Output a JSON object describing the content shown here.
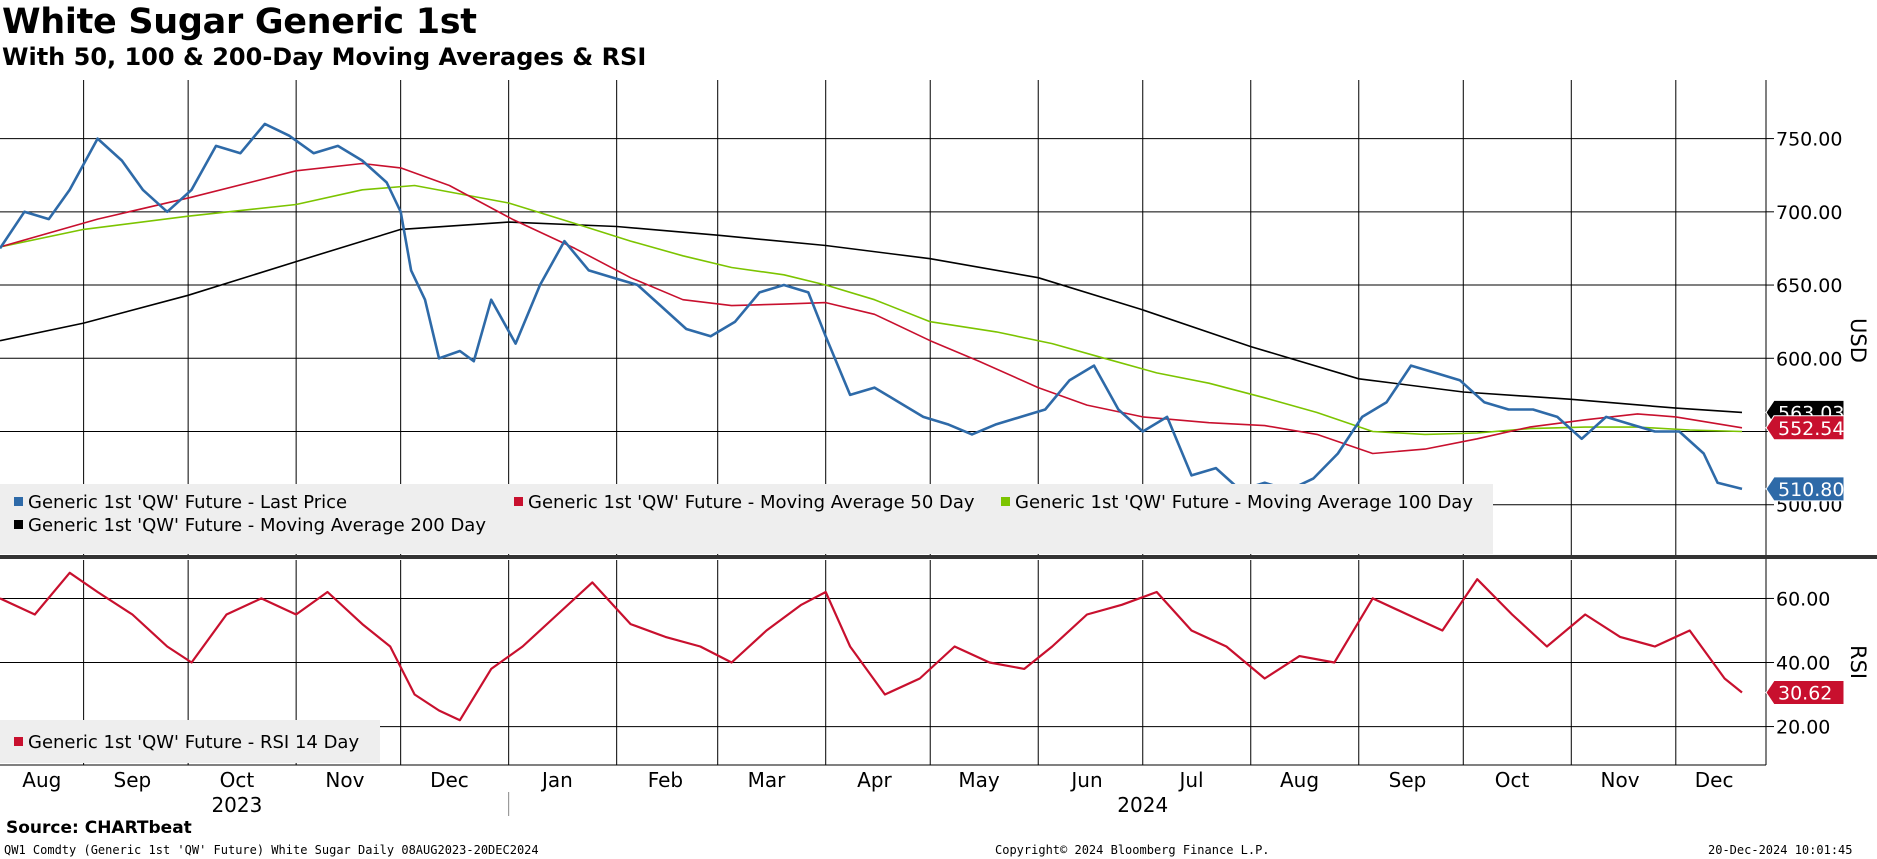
{
  "header": {
    "title": "White Sugar Generic 1st",
    "subtitle": "With 50, 100 & 200-Day Moving Averages & RSI"
  },
  "footer": {
    "source": "Source: CHARTbeat",
    "ticker": "QW1 Comdty (Generic 1st 'QW' Future) White Sugar  Daily 08AUG2023-20DEC2024",
    "copyright": "Copyright© 2024 Bloomberg Finance L.P.",
    "timestamp": "20-Dec-2024 10:01:45"
  },
  "colors": {
    "last_price": "#2e6aa8",
    "ma50": "#c8102e",
    "ma100": "#7cc400",
    "ma200": "#000000",
    "rsi": "#c8102e",
    "grid": "#000000",
    "legend_bg": "#eeeeee"
  },
  "chart_data": [
    {
      "type": "line",
      "title": "White Sugar Generic 1st",
      "ylabel": "USD",
      "ylim": [
        465,
        790
      ],
      "yticks": [
        "500.00",
        "550.00",
        "600.00",
        "650.00",
        "700.00",
        "750.00"
      ],
      "x_start": "2023-08-08",
      "x_end": "2024-12-20",
      "months": [
        "Aug",
        "Sep",
        "Oct",
        "Nov",
        "Dec",
        "Jan",
        "Feb",
        "Mar",
        "Apr",
        "May",
        "Jun",
        "Jul",
        "Aug",
        "Sep",
        "Oct",
        "Nov",
        "Dec"
      ],
      "years": [
        "2023",
        "2024"
      ],
      "last_values": {
        "last_price": "510.80",
        "ma50": "552.54",
        "ma200": "563.03"
      },
      "series": [
        {
          "key": "last_price",
          "name": "Generic 1st 'QW' Future - Last Price",
          "x": [
            "2023-08-08",
            "2023-08-15",
            "2023-08-22",
            "2023-08-28",
            "2023-09-05",
            "2023-09-12",
            "2023-09-18",
            "2023-09-25",
            "2023-10-02",
            "2023-10-09",
            "2023-10-16",
            "2023-10-23",
            "2023-10-30",
            "2023-11-06",
            "2023-11-13",
            "2023-11-20",
            "2023-11-27",
            "2023-12-01",
            "2023-12-04",
            "2023-12-08",
            "2023-12-12",
            "2023-12-18",
            "2023-12-22",
            "2023-12-27",
            "2024-01-03",
            "2024-01-10",
            "2024-01-17",
            "2024-01-24",
            "2024-01-31",
            "2024-02-07",
            "2024-02-14",
            "2024-02-21",
            "2024-02-28",
            "2024-03-06",
            "2024-03-13",
            "2024-03-20",
            "2024-03-27",
            "2024-04-01",
            "2024-04-08",
            "2024-04-15",
            "2024-04-22",
            "2024-04-29",
            "2024-05-06",
            "2024-05-13",
            "2024-05-20",
            "2024-05-27",
            "2024-06-03",
            "2024-06-10",
            "2024-06-17",
            "2024-06-24",
            "2024-07-01",
            "2024-07-08",
            "2024-07-15",
            "2024-07-22",
            "2024-07-29",
            "2024-08-05",
            "2024-08-12",
            "2024-08-19",
            "2024-08-26",
            "2024-09-02",
            "2024-09-09",
            "2024-09-16",
            "2024-09-23",
            "2024-09-30",
            "2024-10-07",
            "2024-10-14",
            "2024-10-21",
            "2024-10-28",
            "2024-11-04",
            "2024-11-11",
            "2024-11-18",
            "2024-11-25",
            "2024-12-02",
            "2024-12-09",
            "2024-12-13",
            "2024-12-20"
          ],
          "values": [
            675,
            700,
            695,
            715,
            750,
            735,
            715,
            700,
            715,
            745,
            740,
            760,
            752,
            740,
            745,
            735,
            720,
            700,
            660,
            640,
            600,
            605,
            598,
            640,
            610,
            650,
            680,
            660,
            655,
            650,
            635,
            620,
            615,
            625,
            645,
            650,
            645,
            615,
            575,
            580,
            570,
            560,
            555,
            548,
            555,
            560,
            565,
            585,
            595,
            565,
            550,
            560,
            520,
            525,
            510,
            515,
            510,
            518,
            535,
            560,
            570,
            595,
            590,
            585,
            570,
            565,
            565,
            560,
            545,
            560,
            555,
            550,
            550,
            535,
            515,
            510.8
          ]
        },
        {
          "key": "ma50",
          "name": "Generic 1st 'QW' Future - Moving Average 50 Day",
          "x": [
            "2023-08-08",
            "2023-09-05",
            "2023-10-02",
            "2023-11-01",
            "2023-11-20",
            "2023-12-01",
            "2023-12-15",
            "2024-01-02",
            "2024-01-20",
            "2024-02-05",
            "2024-02-20",
            "2024-03-05",
            "2024-03-20",
            "2024-04-01",
            "2024-04-15",
            "2024-05-01",
            "2024-05-15",
            "2024-06-01",
            "2024-06-15",
            "2024-07-01",
            "2024-07-20",
            "2024-08-05",
            "2024-08-20",
            "2024-09-05",
            "2024-09-20",
            "2024-10-05",
            "2024-10-20",
            "2024-11-05",
            "2024-11-20",
            "2024-12-01",
            "2024-12-20"
          ],
          "values": [
            676,
            695,
            710,
            728,
            733,
            730,
            718,
            695,
            675,
            655,
            640,
            636,
            637,
            638,
            630,
            612,
            598,
            580,
            568,
            560,
            556,
            554,
            548,
            535,
            538,
            545,
            553,
            558,
            562,
            560,
            552.54
          ]
        },
        {
          "key": "ma100",
          "name": "Generic 1st 'QW' Future - Moving Average 100 Day",
          "x": [
            "2023-08-08",
            "2023-09-01",
            "2023-10-01",
            "2023-11-01",
            "2023-11-20",
            "2023-12-05",
            "2024-01-01",
            "2024-01-20",
            "2024-02-05",
            "2024-02-20",
            "2024-03-05",
            "2024-03-20",
            "2024-04-01",
            "2024-04-15",
            "2024-05-01",
            "2024-05-20",
            "2024-06-05",
            "2024-06-20",
            "2024-07-05",
            "2024-07-20",
            "2024-08-05",
            "2024-08-20",
            "2024-09-05",
            "2024-09-20",
            "2024-10-05",
            "2024-10-20",
            "2024-11-05",
            "2024-11-20",
            "2024-12-05",
            "2024-12-20"
          ],
          "values": [
            676,
            688,
            697,
            705,
            715,
            718,
            706,
            692,
            680,
            670,
            662,
            657,
            650,
            640,
            625,
            618,
            610,
            600,
            590,
            583,
            573,
            563,
            550,
            548,
            549,
            552,
            553,
            553,
            551,
            550
          ]
        },
        {
          "key": "ma200",
          "name": "Generic 1st 'QW' Future - Moving Average 200 Day",
          "x": [
            "2023-08-08",
            "2023-09-01",
            "2023-10-01",
            "2023-11-01",
            "2023-12-01",
            "2024-01-01",
            "2024-02-01",
            "2024-03-01",
            "2024-04-01",
            "2024-05-01",
            "2024-06-01",
            "2024-07-01",
            "2024-08-01",
            "2024-09-01",
            "2024-10-01",
            "2024-11-01",
            "2024-12-01",
            "2024-12-20"
          ],
          "values": [
            612,
            624,
            643,
            666,
            688,
            693,
            690,
            684,
            677,
            668,
            655,
            633,
            608,
            586,
            577,
            572,
            566,
            563.03
          ]
        }
      ]
    },
    {
      "type": "line",
      "ylabel": "RSI",
      "ylim": [
        8,
        72
      ],
      "yticks": [
        "20.00",
        "40.00",
        "60.00"
      ],
      "last_value": "30.62",
      "series": [
        {
          "key": "rsi",
          "name": "Generic 1st 'QW' Future - RSI 14 Day",
          "x": [
            "2023-08-08",
            "2023-08-18",
            "2023-08-28",
            "2023-09-05",
            "2023-09-15",
            "2023-09-25",
            "2023-10-02",
            "2023-10-12",
            "2023-10-22",
            "2023-11-01",
            "2023-11-10",
            "2023-11-20",
            "2023-11-28",
            "2023-12-05",
            "2023-12-12",
            "2023-12-18",
            "2023-12-27",
            "2024-01-05",
            "2024-01-15",
            "2024-01-25",
            "2024-02-05",
            "2024-02-15",
            "2024-02-25",
            "2024-03-05",
            "2024-03-15",
            "2024-03-25",
            "2024-04-01",
            "2024-04-08",
            "2024-04-18",
            "2024-04-28",
            "2024-05-08",
            "2024-05-18",
            "2024-05-28",
            "2024-06-05",
            "2024-06-15",
            "2024-06-25",
            "2024-07-05",
            "2024-07-15",
            "2024-07-25",
            "2024-08-05",
            "2024-08-15",
            "2024-08-25",
            "2024-09-05",
            "2024-09-15",
            "2024-09-25",
            "2024-10-05",
            "2024-10-15",
            "2024-10-25",
            "2024-11-05",
            "2024-11-15",
            "2024-11-25",
            "2024-12-05",
            "2024-12-15",
            "2024-12-20"
          ],
          "values": [
            60,
            55,
            68,
            62,
            55,
            45,
            40,
            55,
            60,
            55,
            62,
            52,
            45,
            30,
            25,
            22,
            38,
            45,
            55,
            65,
            52,
            48,
            45,
            40,
            50,
            58,
            62,
            45,
            30,
            35,
            45,
            40,
            38,
            45,
            55,
            58,
            62,
            50,
            45,
            35,
            42,
            40,
            60,
            55,
            50,
            66,
            55,
            45,
            55,
            48,
            45,
            50,
            35,
            30.62
          ]
        }
      ]
    }
  ]
}
